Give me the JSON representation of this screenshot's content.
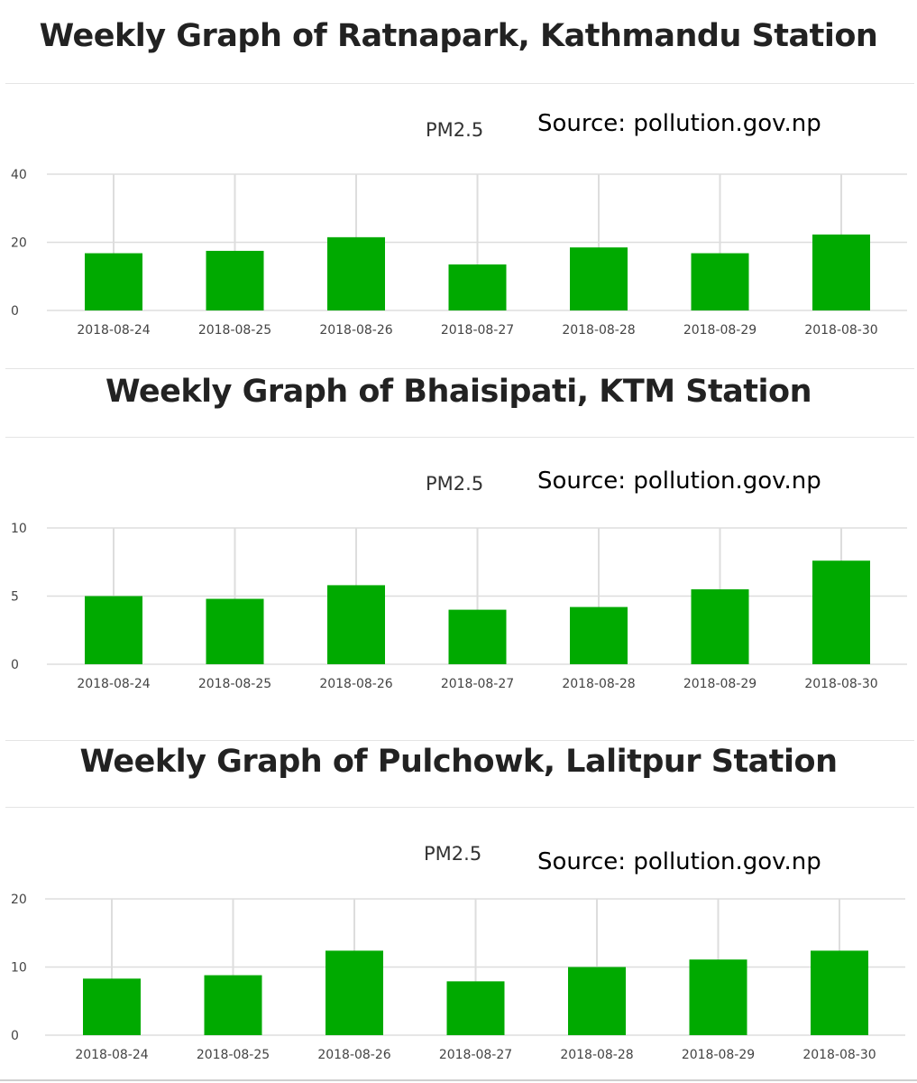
{
  "colors": {
    "bar": "#00aa00",
    "grid": "#dddddd",
    "text": "#222222"
  },
  "chart_data": [
    {
      "type": "bar",
      "title": "Weekly Graph of Ratnapark, Kathmandu Station",
      "series_label": "PM2.5",
      "source": "Source: pollution.gov.np",
      "categories": [
        "2018-08-24",
        "2018-08-25",
        "2018-08-26",
        "2018-08-27",
        "2018-08-28",
        "2018-08-29",
        "2018-08-30"
      ],
      "series": [
        {
          "name": "PM2.5",
          "values": [
            16.8,
            17.5,
            21.5,
            13.5,
            18.5,
            16.8,
            22.3
          ]
        }
      ],
      "ylim": [
        0,
        40
      ],
      "yticks": [
        0,
        20,
        40
      ],
      "grid": true
    },
    {
      "type": "bar",
      "title": "Weekly Graph of Bhaisipati, KTM Station",
      "series_label": "PM2.5",
      "source": "Source: pollution.gov.np",
      "categories": [
        "2018-08-24",
        "2018-08-25",
        "2018-08-26",
        "2018-08-27",
        "2018-08-28",
        "2018-08-29",
        "2018-08-30"
      ],
      "series": [
        {
          "name": "PM2.5",
          "values": [
            5.0,
            4.8,
            5.8,
            4.0,
            4.2,
            5.5,
            7.6
          ]
        }
      ],
      "ylim": [
        0,
        10
      ],
      "yticks": [
        0,
        5,
        10
      ],
      "grid": true
    },
    {
      "type": "bar",
      "title": "Weekly Graph of Pulchowk, Lalitpur Station",
      "series_label": "PM2.5",
      "source": "Source: pollution.gov.np",
      "categories": [
        "2018-08-24",
        "2018-08-25",
        "2018-08-26",
        "2018-08-27",
        "2018-08-28",
        "2018-08-29",
        "2018-08-30"
      ],
      "series": [
        {
          "name": "PM2.5",
          "values": [
            8.3,
            8.8,
            12.4,
            7.9,
            10.0,
            11.1,
            12.4
          ]
        }
      ],
      "ylim": [
        0,
        20
      ],
      "yticks": [
        0,
        10,
        20
      ],
      "grid": true
    }
  ]
}
